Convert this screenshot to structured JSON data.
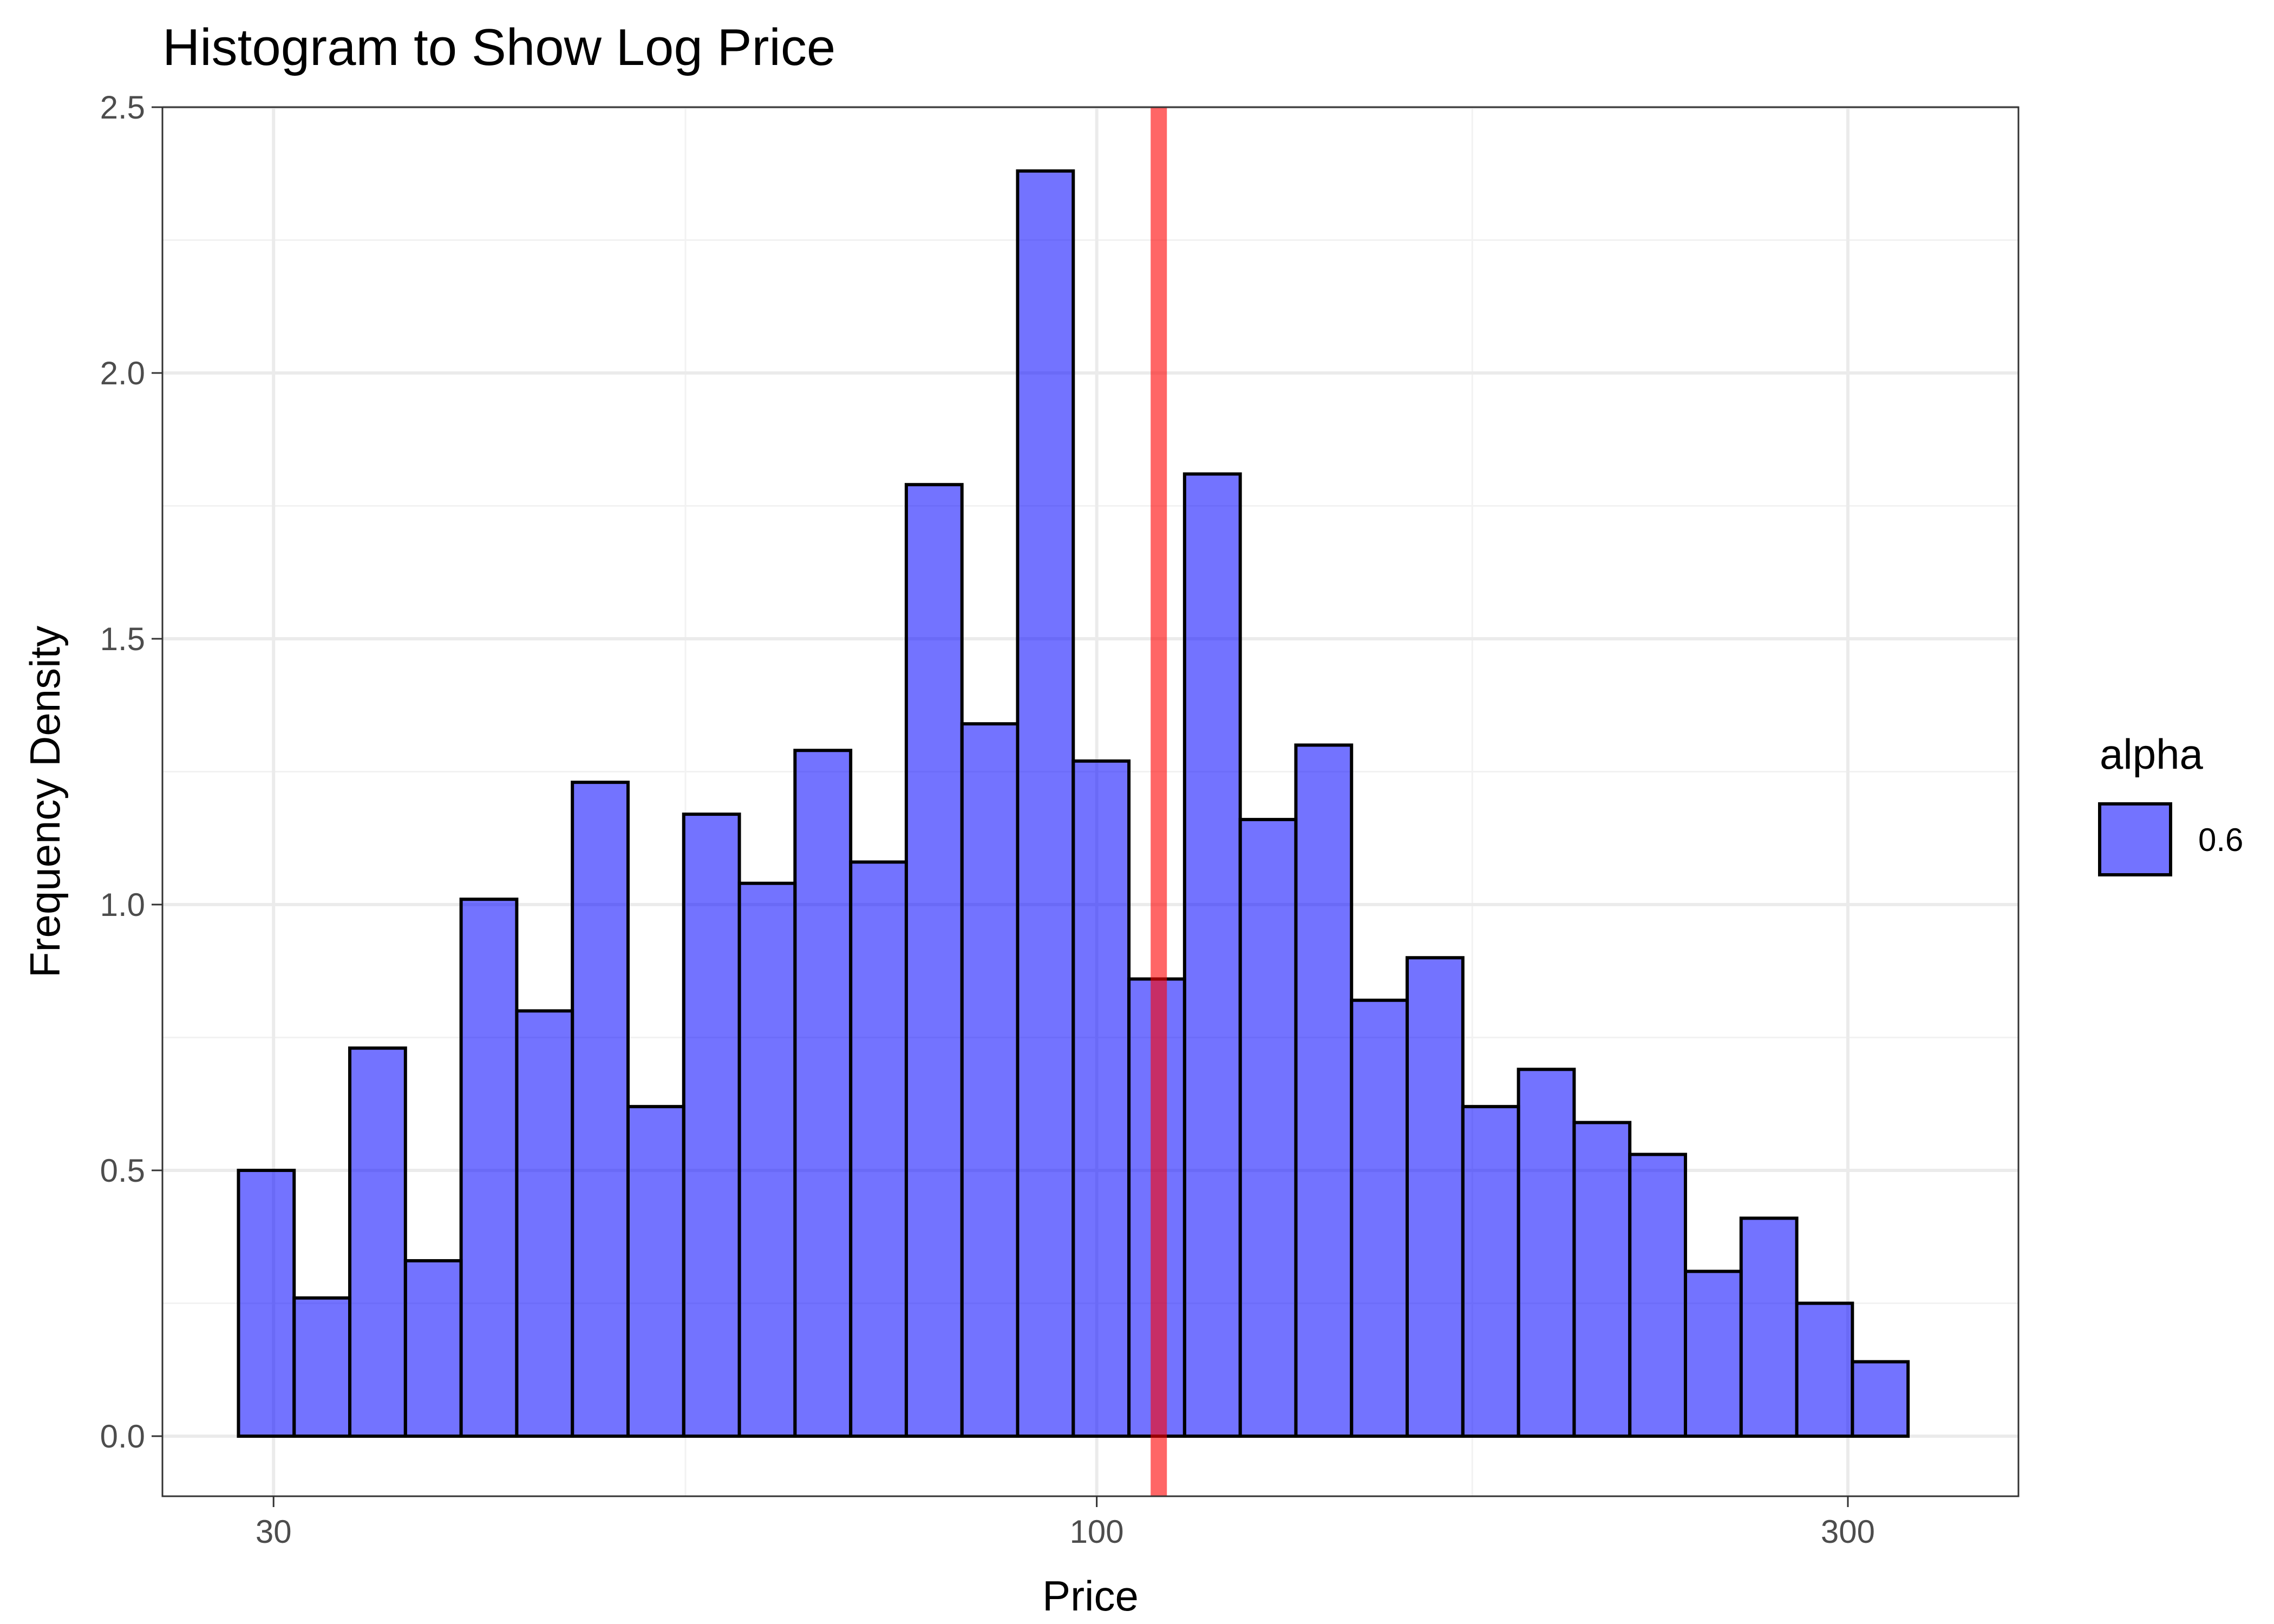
{
  "chart_data": {
    "type": "bar",
    "title": "Histogram to Show Log Price",
    "xlabel": "Price",
    "ylabel": "Frequency Density",
    "x_scale": "log10",
    "xlim": [
      25.5,
      385
    ],
    "ylim": [
      -0.113,
      2.5
    ],
    "x_ticks": [
      30,
      100,
      300
    ],
    "x_tick_labels": [
      "30",
      "100",
      "300"
    ],
    "y_ticks": [
      0,
      0.5,
      1,
      1.5,
      2,
      2.5
    ],
    "y_tick_labels": [
      "0.0",
      "0.5",
      "1.0",
      "1.5",
      "2.0",
      "2.5"
    ],
    "x_minor_ticks": [
      54.8,
      173.2
    ],
    "grid": true,
    "bins": {
      "first_bin_start": 28.5,
      "log10_bin_width": 0.03535,
      "count": 30
    },
    "values": [
      0.5,
      0.26,
      0.73,
      0.33,
      1.01,
      0.8,
      1.23,
      0.62,
      1.17,
      1.04,
      1.29,
      1.08,
      1.79,
      1.34,
      2.38,
      1.27,
      0.86,
      1.81,
      1.16,
      1.3,
      0.82,
      0.9,
      0.62,
      0.69,
      0.59,
      0.53,
      0.31,
      0.41,
      0.25,
      0.14
    ],
    "vline": {
      "x": 109.5,
      "color": "#ff0000"
    },
    "bar_fill": "#0000ff",
    "bar_opacity": 0.55,
    "bar_stroke": "#000000",
    "legend": {
      "title": "alpha",
      "items": [
        {
          "label": "0.6",
          "color": "#0000ff"
        }
      ],
      "placement": "right"
    }
  }
}
